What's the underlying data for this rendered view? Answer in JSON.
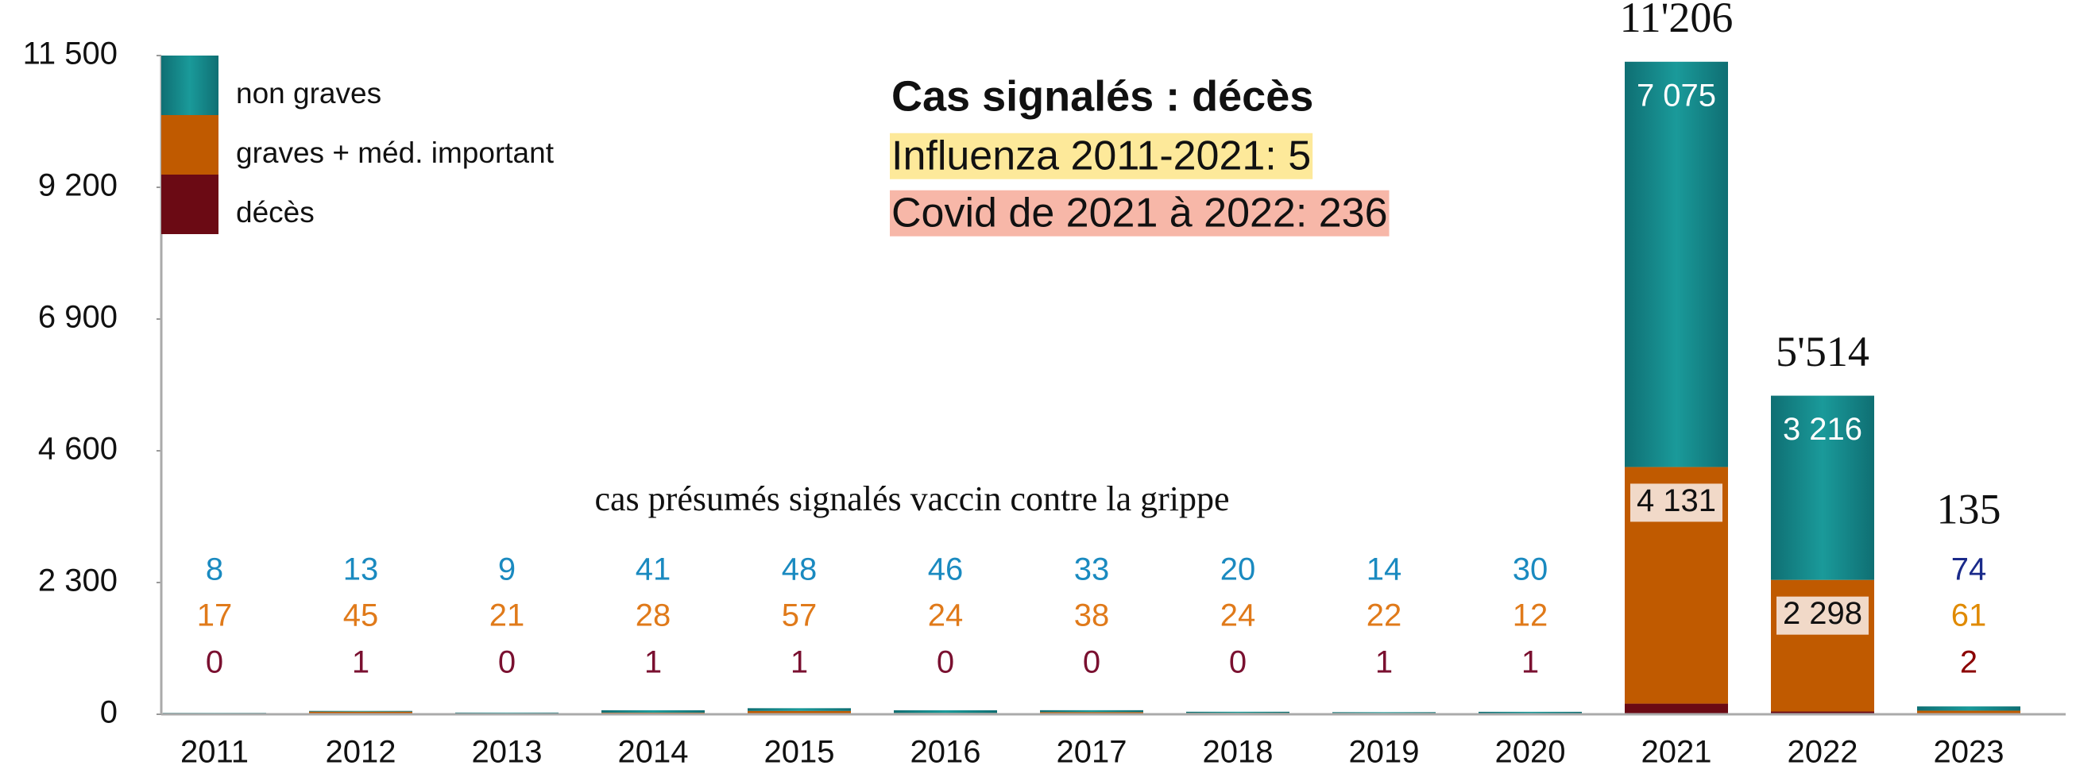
{
  "chart_data": {
    "type": "stacked_bar",
    "title": "Cas signalés : décès",
    "subtitles": [
      "Influenza 2011-2021: 5",
      "Covid de 2021 à 2022: 236"
    ],
    "annotation": "cas présumés signalés vaccin contre la grippe",
    "categories": [
      "2011",
      "2012",
      "2013",
      "2014",
      "2015",
      "2016",
      "2017",
      "2018",
      "2019",
      "2020",
      "2021",
      "2022",
      "2023"
    ],
    "series": [
      {
        "name": "décès",
        "color": "#6b0a14",
        "values": [
          0,
          1,
          0,
          1,
          1,
          0,
          0,
          0,
          1,
          1,
          186,
          48,
          2
        ]
      },
      {
        "name": "graves + méd. important",
        "color": "#c05a00",
        "values": [
          17,
          45,
          21,
          28,
          57,
          24,
          38,
          24,
          22,
          12,
          4131,
          2298,
          61
        ],
        "value_labels": [
          "17",
          "45",
          "21",
          "28",
          "57",
          "24",
          "38",
          "24",
          "22",
          "12",
          "4 131",
          "2 298",
          "61"
        ]
      },
      {
        "name": "non graves",
        "color": "#17868a",
        "values": [
          8,
          13,
          9,
          41,
          48,
          46,
          33,
          20,
          14,
          30,
          7075,
          3216,
          74
        ],
        "value_labels": [
          "8",
          "13",
          "9",
          "41",
          "48",
          "46",
          "33",
          "20",
          "14",
          "30",
          "7 075",
          "3 216",
          "74"
        ]
      }
    ],
    "totals": {
      "categories": [
        "2021",
        "2022",
        "2023"
      ],
      "values": [
        11206,
        5514,
        135
      ],
      "value_labels": [
        "11'206",
        "5'514",
        "135"
      ]
    },
    "ylim": [
      0,
      11500
    ],
    "yticks": [
      0,
      {
        "value": 2300,
        "label": "2 300"
      },
      {
        "value": 4600,
        "label": "4 600"
      },
      {
        "value": 6900,
        "label": "6 900"
      },
      {
        "value": 9200,
        "label": "9 200"
      },
      {
        "value": 11500,
        "label": "11 500"
      }
    ]
  }
}
